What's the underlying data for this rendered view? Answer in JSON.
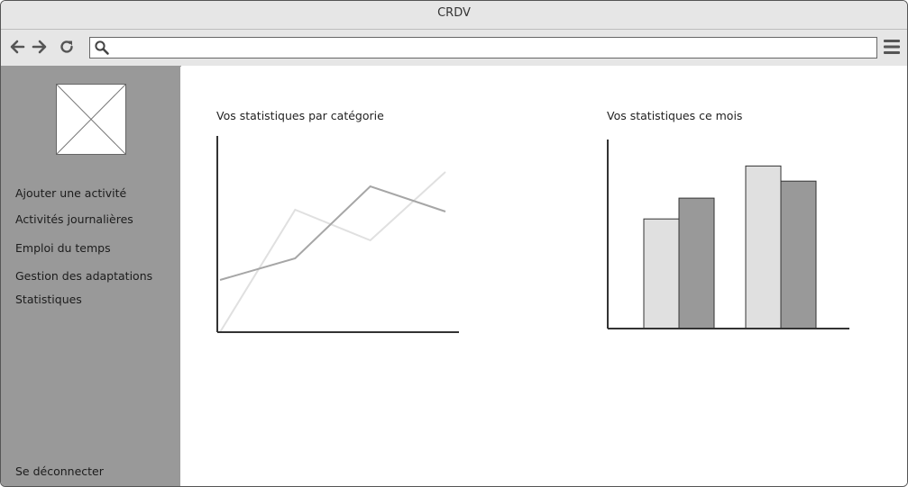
{
  "window": {
    "title": "CRDV"
  },
  "browser": {
    "url": "",
    "icons": {
      "back": "arrow-left-icon",
      "forward": "arrow-right-icon",
      "reload": "reload-icon",
      "search": "search-icon",
      "menu": "hamburger-icon"
    }
  },
  "sidebar": {
    "logo": "image-placeholder-icon",
    "items": [
      {
        "label": "Ajouter une activité"
      },
      {
        "label": "Activités journalières"
      },
      {
        "label": "Emploi du temps"
      },
      {
        "label": "Gestion des adaptations"
      },
      {
        "label": "Statistiques"
      }
    ],
    "logout": "Se déconnecter"
  },
  "charts": {
    "category_title": "Vos statistiques par catégorie",
    "month_title": "Vos statistiques ce mois"
  },
  "chart_data": [
    {
      "type": "line",
      "title": "Vos statistiques par catégorie",
      "xlabel": "",
      "ylabel": "",
      "x": [
        0,
        1,
        2,
        3
      ],
      "ylim": [
        0,
        100
      ],
      "grid": false,
      "series": [
        {
          "values": [
            0,
            68,
            51,
            89
          ],
          "color": "#e0e0e0"
        },
        {
          "values": [
            29,
            41,
            81,
            67
          ],
          "color": "#a6a6a6"
        }
      ]
    },
    {
      "type": "bar",
      "title": "Vos statistiques ce mois",
      "xlabel": "",
      "ylabel": "",
      "categories": [
        "",
        ""
      ],
      "ylim": [
        0,
        100
      ],
      "grid": false,
      "series": [
        {
          "values": [
            58,
            86
          ],
          "color": "#e0e0e0"
        },
        {
          "values": [
            69,
            78
          ],
          "color": "#999999"
        }
      ]
    }
  ]
}
